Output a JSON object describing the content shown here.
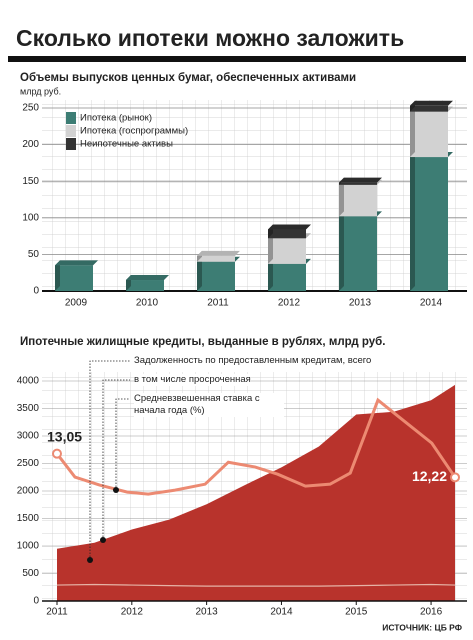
{
  "title": "Сколько ипотеки можно заложить",
  "source": "ИСТОЧНИК: ЦБ РФ",
  "chart_data": [
    {
      "type": "bar",
      "stacked": true,
      "title": "Объемы выпусков ценных бумаг, обеспеченных активами",
      "y_label": "млрд руб.",
      "categories": [
        "2009",
        "2010",
        "2011",
        "2012",
        "2013",
        "2014"
      ],
      "series": [
        {
          "name": "Ипотека (рынок)",
          "color": "#3d7d74",
          "values": [
            35,
            15,
            40,
            37,
            102,
            183
          ]
        },
        {
          "name": "Ипотека (госпрограммы)",
          "color": "#d2d2d2",
          "values": [
            0,
            0,
            8,
            35,
            43,
            62
          ]
        },
        {
          "name": "Неипотечные активы",
          "color": "#333333",
          "values": [
            0,
            0,
            0,
            12,
            3,
            8
          ]
        }
      ],
      "ylim": [
        0,
        250
      ],
      "yticks": [
        0,
        50,
        100,
        150,
        200,
        250
      ],
      "grid": true,
      "legend": "top-left"
    },
    {
      "type": "line",
      "title": "Ипотечные жилищные кредиты, выданные в рублях, млрд руб.",
      "xlim": [
        2011,
        2016.36
      ],
      "xticks": [
        2011,
        2012,
        2013,
        2014,
        2015,
        2016
      ],
      "ylim": [
        0,
        4000
      ],
      "yticks": [
        0,
        500,
        1000,
        1500,
        2000,
        2500,
        3000,
        3500,
        4000
      ],
      "y2lim": [
        7.88,
        15.6
      ],
      "grid": true,
      "series": [
        {
          "name": "Задолженность по предоставленным кредитам, всего",
          "color": "#b8332c",
          "fill": true,
          "x": [
            2011,
            2011.5,
            2012,
            2012.5,
            2013,
            2013.5,
            2014,
            2014.5,
            2015,
            2015.5,
            2016,
            2016.32
          ],
          "values": [
            950,
            1060,
            1300,
            1480,
            1760,
            2100,
            2430,
            2810,
            3390,
            3440,
            3650,
            3930
          ]
        },
        {
          "name": "в том числе просроченная",
          "color": "#e6b3a6",
          "x": [
            2011,
            2011.5,
            2012,
            2012.5,
            2013,
            2013.5,
            2014,
            2014.5,
            2015,
            2015.5,
            2016,
            2016.32
          ],
          "values": [
            290,
            300,
            290,
            280,
            270,
            270,
            270,
            270,
            280,
            290,
            300,
            290
          ]
        },
        {
          "name": "Средневзвешенная ставка с начала года (%)",
          "color": "#ec8a72",
          "axis": "y2",
          "x": [
            2011,
            2011.24,
            2011.57,
            2011.94,
            2012.22,
            2012.58,
            2012.98,
            2013.29,
            2013.65,
            2013.95,
            2014.32,
            2014.65,
            2014.92,
            2015.29,
            2015.59,
            2016.01,
            2016.32
          ],
          "values": [
            13.05,
            12.23,
            11.95,
            11.7,
            11.63,
            11.77,
            11.98,
            12.75,
            12.58,
            12.33,
            11.91,
            11.98,
            12.37,
            14.93,
            14.3,
            13.42,
            12.22
          ],
          "value_labels": [
            "13,05",
            null,
            null,
            null,
            null,
            null,
            null,
            null,
            null,
            null,
            null,
            null,
            null,
            null,
            null,
            null,
            "12,22"
          ]
        }
      ]
    }
  ]
}
